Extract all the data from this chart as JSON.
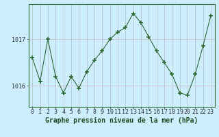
{
  "x": [
    0,
    1,
    2,
    3,
    4,
    5,
    6,
    7,
    8,
    9,
    10,
    11,
    12,
    13,
    14,
    15,
    16,
    17,
    18,
    19,
    20,
    21,
    22,
    23
  ],
  "y": [
    1016.6,
    1016.1,
    1017.0,
    1016.2,
    1015.85,
    1016.2,
    1015.95,
    1016.3,
    1016.55,
    1016.75,
    1017.0,
    1017.15,
    1017.25,
    1017.55,
    1017.35,
    1017.05,
    1016.75,
    1016.5,
    1016.25,
    1015.85,
    1015.8,
    1016.25,
    1016.85,
    1017.5
  ],
  "line_color": "#2d6a2d",
  "marker": "+",
  "marker_size": 4,
  "marker_linewidth": 1.2,
  "bg_color": "#cceeff",
  "grid_color_v": "#b8b8c8",
  "grid_color_h": "#c8b8b8",
  "xlabel": "Graphe pression niveau de la mer (hPa)",
  "xlabel_fontsize": 7,
  "yticks": [
    1016,
    1017
  ],
  "ylim": [
    1015.55,
    1017.75
  ],
  "xlim": [
    -0.5,
    23.5
  ],
  "tick_fontsize": 6,
  "xtick_labels": [
    "0",
    "1",
    "2",
    "3",
    "4",
    "5",
    "6",
    "7",
    "8",
    "9",
    "10",
    "11",
    "12",
    "13",
    "14",
    "15",
    "16",
    "17",
    "18",
    "19",
    "20",
    "21",
    "22",
    "23"
  ]
}
